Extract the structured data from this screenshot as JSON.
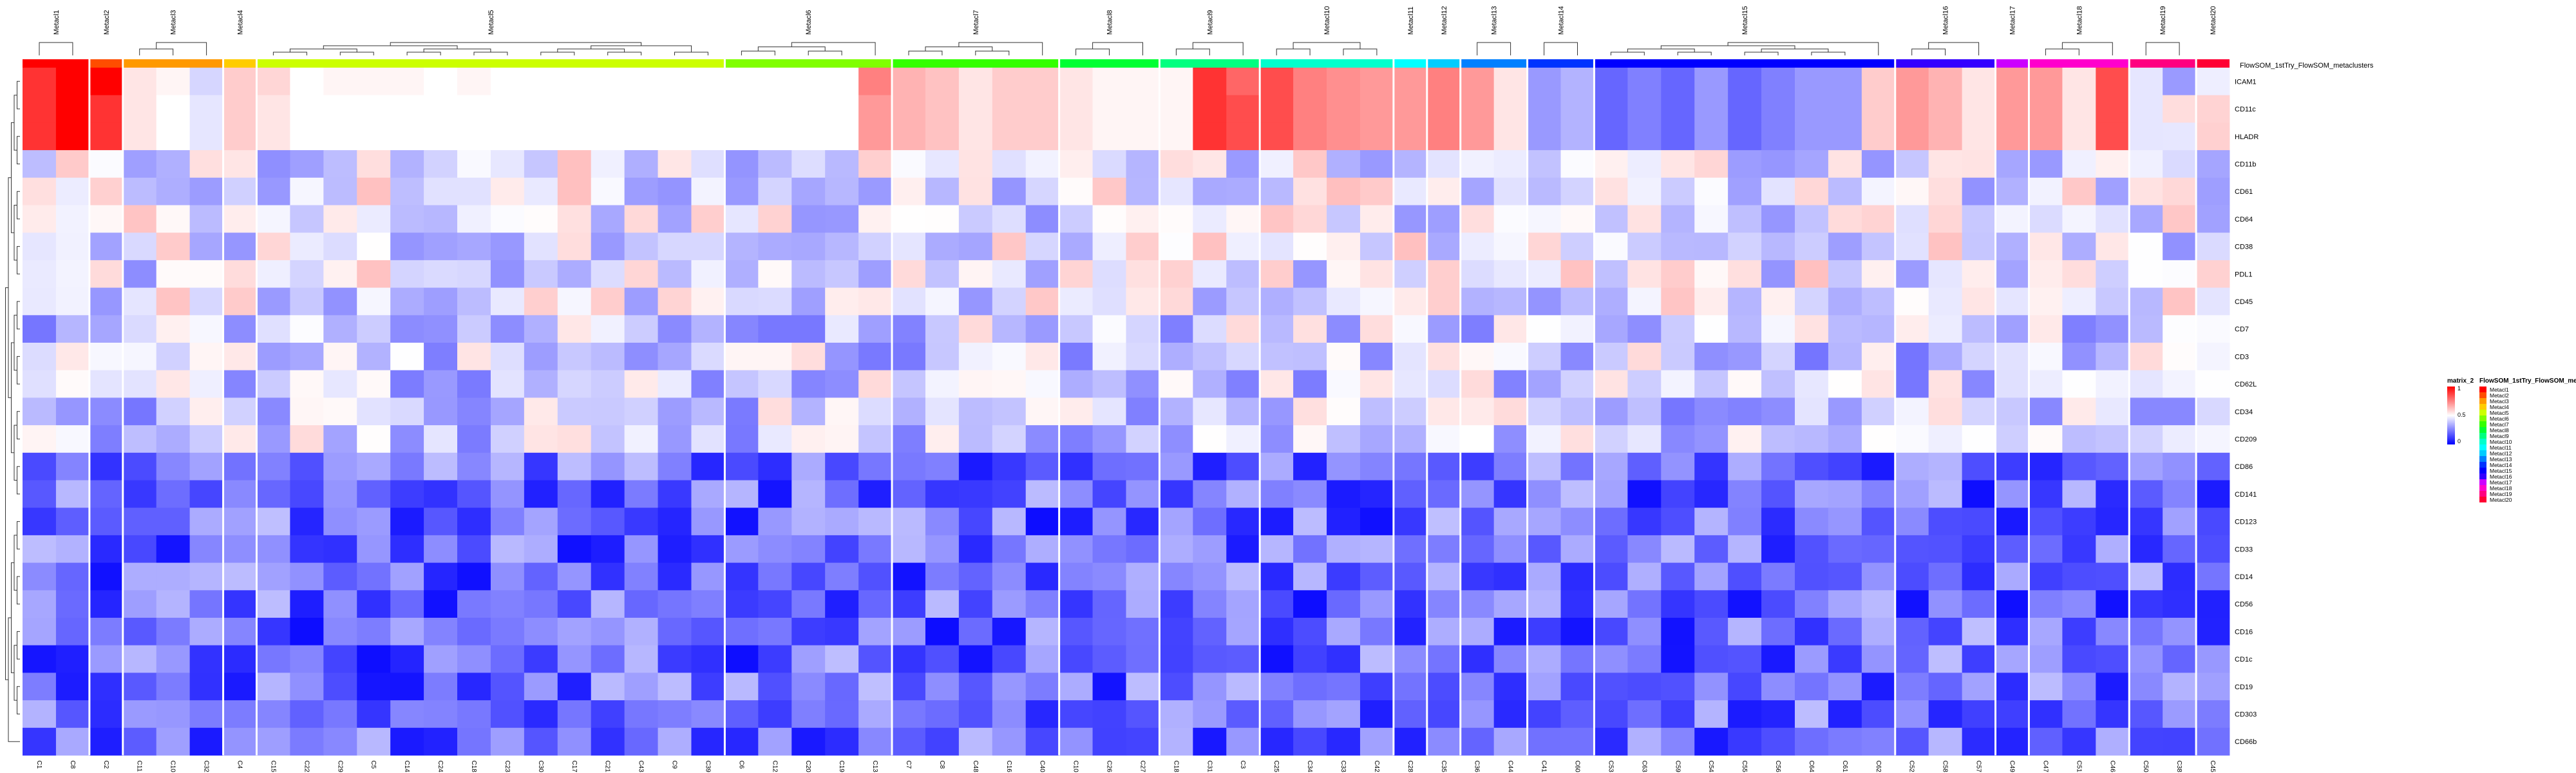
{
  "chart_data": {
    "type": "heatmap",
    "annotation_track_label": "FlowSOM_1stTry_FlowSOM_metaclusters",
    "legend": {
      "color_title": "matrix_2",
      "color_ticks": [
        "1",
        "0.5",
        "0"
      ],
      "color_scale": [
        "#0000ff",
        "#ffffff",
        "#ff0000"
      ],
      "annotation_title": "FlowSOM_1stTry_FlowSOM_metaclusters"
    },
    "metaclusters": [
      {
        "name": "Metacl1",
        "color": "#ff0000",
        "clusters": [
          "C1",
          "C8"
        ]
      },
      {
        "name": "Metacl2",
        "color": "#ff4d00",
        "clusters": [
          "C2"
        ]
      },
      {
        "name": "Metacl3",
        "color": "#ff9900",
        "clusters": [
          "C11",
          "C10",
          "C32"
        ]
      },
      {
        "name": "Metacl4",
        "color": "#ffcc00",
        "clusters": [
          "C4"
        ]
      },
      {
        "name": "Metacl5",
        "color": "#ccff00",
        "clusters": [
          "C15",
          "C22",
          "C29",
          "C5",
          "C14",
          "C24",
          "C18",
          "C23",
          "C30",
          "C17",
          "C21",
          "C43",
          "C9",
          "C39"
        ]
      },
      {
        "name": "Metacl6",
        "color": "#80ff00",
        "clusters": [
          "C6",
          "C12",
          "C20",
          "C19",
          "C13"
        ]
      },
      {
        "name": "Metacl7",
        "color": "#33ff00",
        "clusters": [
          "C7",
          "C8",
          "C48",
          "C16",
          "C40"
        ]
      },
      {
        "name": "Metacl8",
        "color": "#00ff33",
        "clusters": [
          "C10",
          "C26",
          "C27"
        ]
      },
      {
        "name": "Metacl9",
        "color": "#00ff80",
        "clusters": [
          "C18",
          "C31",
          "C3"
        ]
      },
      {
        "name": "Metacl10",
        "color": "#00ffcc",
        "clusters": [
          "C25",
          "C34",
          "C33",
          "C42"
        ]
      },
      {
        "name": "Metacl11",
        "color": "#00ffff",
        "clusters": [
          "C28"
        ]
      },
      {
        "name": "Metacl12",
        "color": "#00ccff",
        "clusters": [
          "C35"
        ]
      },
      {
        "name": "Metacl13",
        "color": "#0080ff",
        "clusters": [
          "C36",
          "C44"
        ]
      },
      {
        "name": "Metacl14",
        "color": "#0033ff",
        "clusters": [
          "C41",
          "C60"
        ]
      },
      {
        "name": "Metacl15",
        "color": "#0000ff",
        "clusters": [
          "C53",
          "C63",
          "C59",
          "C54",
          "C55",
          "C56",
          "C64",
          "C61",
          "C62"
        ]
      },
      {
        "name": "Metacl16",
        "color": "#3300ff",
        "clusters": [
          "C52",
          "C58",
          "C57"
        ]
      },
      {
        "name": "Metacl17",
        "color": "#cc00ff",
        "clusters": [
          "C49"
        ]
      },
      {
        "name": "Metacl18",
        "color": "#ff00cc",
        "clusters": [
          "C47",
          "C51",
          "C46"
        ]
      },
      {
        "name": "Metacl19",
        "color": "#ff0080",
        "clusters": [
          "C50",
          "C38"
        ]
      },
      {
        "name": "Metacl20",
        "color": "#ff0033",
        "clusters": [
          "C45"
        ]
      }
    ],
    "rows": [
      "ICAM1",
      "CD11c",
      "HLADR",
      "CD11b",
      "CD61",
      "CD64",
      "CD38",
      "PDL1",
      "CD45",
      "CD7",
      "CD3",
      "CD62L",
      "CD34",
      "CD209",
      "CD86",
      "CD141",
      "CD123",
      "CD33",
      "CD14",
      "CD56",
      "CD16",
      "CD1c",
      "CD19",
      "CD303",
      "CD66b"
    ],
    "value_range": [
      0,
      1
    ],
    "values": [
      [
        0.9,
        1.0,
        1.0,
        0.55,
        0.52,
        0.42,
        0.6,
        0.58,
        0.5,
        0.52,
        0.52,
        0.52,
        0.5,
        0.52,
        0.5,
        0.5,
        0.5,
        0.5,
        0.5,
        0.5,
        0.5,
        0.5,
        0.5,
        0.5,
        0.5,
        0.75,
        0.65,
        0.62,
        0.55,
        0.6,
        0.6,
        0.55,
        0.52,
        0.52,
        0.52,
        0.9,
        0.8,
        0.85,
        0.75,
        0.72,
        0.7,
        0.7,
        0.75,
        0.7,
        0.55,
        0.3,
        0.35,
        0.2,
        0.25,
        0.2,
        0.3,
        0.2,
        0.25,
        0.3,
        0.3,
        0.6,
        0.7,
        0.65,
        0.55,
        0.7,
        0.7,
        0.55,
        0.85,
        0.45
      ],
      [
        0.9,
        1.0,
        0.9,
        0.55,
        0.5,
        0.45,
        0.6,
        0.55,
        0.5,
        0.5,
        0.5,
        0.5,
        0.5,
        0.5,
        0.5,
        0.5,
        0.5,
        0.5,
        0.5,
        0.5,
        0.5,
        0.5,
        0.5,
        0.5,
        0.5,
        0.7,
        0.65,
        0.62,
        0.55,
        0.6,
        0.6,
        0.55,
        0.52,
        0.52,
        0.52,
        0.9,
        0.85,
        0.85,
        0.75,
        0.72,
        0.7,
        0.7,
        0.75,
        0.7,
        0.55,
        0.3,
        0.35,
        0.2,
        0.25,
        0.2,
        0.3,
        0.2,
        0.25,
        0.3,
        0.3,
        0.6,
        0.7,
        0.65,
        0.55,
        0.7,
        0.7,
        0.55,
        0.85,
        0.45
      ],
      [
        0.9,
        1.0,
        0.9,
        0.55,
        0.5,
        0.45,
        0.6,
        0.55,
        0.5,
        0.5,
        0.5,
        0.5,
        0.5,
        0.5,
        0.5,
        0.5,
        0.5,
        0.5,
        0.5,
        0.5,
        0.5,
        0.5,
        0.5,
        0.5,
        0.5,
        0.7,
        0.65,
        0.62,
        0.55,
        0.6,
        0.6,
        0.55,
        0.52,
        0.52,
        0.52,
        0.9,
        0.85,
        0.85,
        0.75,
        0.72,
        0.7,
        0.7,
        0.75,
        0.7,
        0.55,
        0.3,
        0.35,
        0.2,
        0.25,
        0.2,
        0.3,
        0.2,
        0.25,
        0.3,
        0.3,
        0.6,
        0.7,
        0.65,
        0.55,
        0.7,
        0.7,
        0.55,
        0.85,
        0.45
      ]
    ]
  }
}
